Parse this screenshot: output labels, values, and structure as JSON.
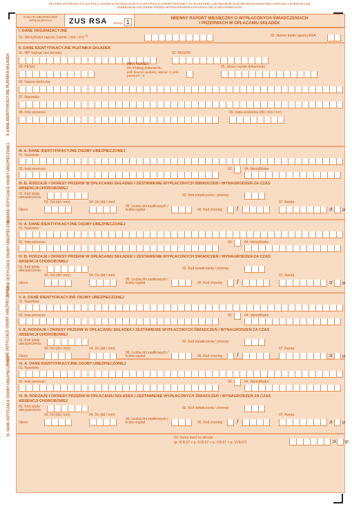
{
  "header": {
    "instructions": "PŁATNIK WYPEŁNIA TYLKO POLA JASNE W WYZNACZONYCH KRATKACH KOMPUTEROWO, NA MASZYNIE LUB RĘCZNIE DUŻYMI DRUKOWANYMI LITERAMI, CZARNYM LUB NIEBIESKIM KOLOREM. PRZED WYPEŁNIENIEM ZAPOZNAJ SIĘ Z OBJAŚNIENIAMI",
    "zus_label": "ZAKŁAD UBEZPIECZEŃ SPOŁECZNYCH",
    "form_code": "ZUS  RSA",
    "form_index_label": "Strona",
    "form_index": "1",
    "title_line1": "IMIENNY RAPORT MIESIĘCZNY O WYPŁACONYCH ŚWIADCZENIACH",
    "title_line2": "I PRZERWACH W OPŁACANIU SKŁADEK"
  },
  "section1": {
    "title": "I. DANE ORGANIZACYJNE",
    "f01": "01. Identyfikator raportu (numer / mm / rrrr)",
    "f01_sup": "1)",
    "f02": "02. Numer kartki raportu RSA"
  },
  "section2": {
    "side_label": "II. DANE IDENTYFIKACYJNE PŁATNIKA SKŁADEK",
    "title": "II. DANE IDENTYFIKACYJNE PŁATNIKA SKŁADEK",
    "f01": "01. NIP (wpisać bez kresek)",
    "f02": "02. REGON",
    "f03": "03. PESEL",
    "inny": "INNY NUMER",
    "f04": "04. Rodzaj dokumentu",
    "f04_note": "jeśli dowód osobisty, wpisać 1, jeśli paszport - 2",
    "f05": "05. Seria i numer dokumentu",
    "f06": "06. Nazwa skrócona",
    "f07": "07. Nazwisko",
    "f08": "08. Imię pierwsze",
    "f09": "09. Data urodzenia (dd / mm / rrrr)"
  },
  "insured": [
    {
      "side_label": "III. DANE DOTYCZĄCE OSOBY UBEZPIECZONEJ",
      "a_title": "III. A. DANE IDENTYFIKACYJNE OSOBY UBEZPIECZONEJ",
      "b_title": "III. B. RODZAJE I OKRESY PRZERW W OPŁACANIU SKŁADEK I ZESTAWIENIE WYPŁACONYCH ŚWIADCZEŃ / WYNAGRODZEŃ ZA CZAS ABSENCJI CHOROBOWEJ"
    },
    {
      "side_label": "IV. DANE DOTYCZĄCE OSOBY UBEZPIECZONEJ",
      "a_title": "IV. A. DANE IDENTYFIKACYJNE OSOBY UBEZPIECZONEJ",
      "b_title": "IV. B. RODZAJE I OKRESY PRZERW W OPŁACANIU SKŁADEK I ZESTAWIENIE WYPŁACONYCH ŚWIADCZEŃ / WYNAGRODZEŃ ZA CZAS ABSENCJI CHOROBOWEJ"
    },
    {
      "side_label": "V. DANE DOTYCZĄCE OSOBY UBEZPIECZONEJ",
      "a_title": "V. A. DANE IDENTYFIKACYJNE OSOBY UBEZPIECZONEJ",
      "b_title": "V. B. RODZAJE I OKRESY PRZERW W OPŁACANIU SKŁADEK I ZESTAWIENIE WYPŁACONYCH ŚWIADCZEŃ / WYNAGRODZEŃ ZA CZAS ABSENCJI CHOROBOWEJ"
    },
    {
      "side_label": "VI. DANE DOTYCZĄCE OSOBY UBEZPIECZONEJ",
      "a_title": "VI. A. DANE IDENTYFIKACYJNE OSOBY UBEZPIECZONEJ",
      "b_title": "VI. B. RODZAJE I OKRESY PRZERW W OPŁACANIU SKŁADEK I ZESTAWIENIE WYPŁACONYCH ŚWIADCZEŃ / WYNAGRODZEŃ ZA CZAS ABSENCJI CHOROBOWEJ"
    }
  ],
  "a_fields": {
    "f01": "01. Nazwisko",
    "f02": "02. Imię pierwsze",
    "f03": "03. Typ",
    "f04": "04. Identyfikator"
  },
  "b_fields": {
    "f01": "01. Kod tytułu ubezpieczenia",
    "f02": "02. Kod świadczenia / przerwy",
    "f03": "03. Od (dd / mm)",
    "f04": "04. Do (dd / mm)",
    "okres": "Okres",
    "f05": "05. Liczba dni zasiłkowych / liczba wypłat",
    "f06": "06. Kod choroby",
    "f07": "07. Kwota",
    "zl": "zł",
    "gr": "gr"
  },
  "summary": {
    "line1": "03. Suma kwot na stronie",
    "line2": "(p. III.B.07 + p. IV.B.07 + p. V.B.07 + p. VI.B.07)",
    "zl": "zł",
    "gr": "gr"
  },
  "colors": {
    "accent": "#e98b4a",
    "fill": "#f8dcc4",
    "text": "#c05a1a"
  }
}
